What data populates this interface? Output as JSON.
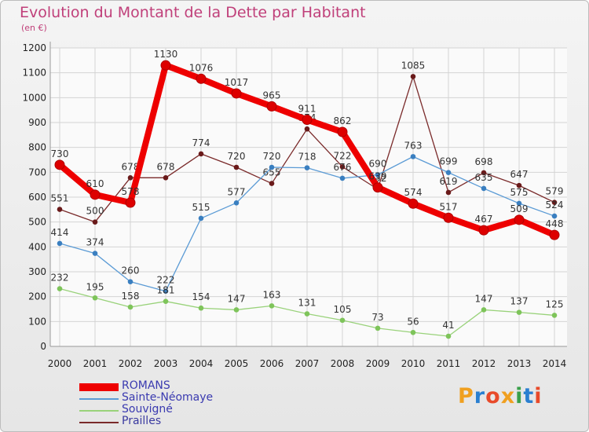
{
  "title": "Evolution du Montant de la Dette par Habitant",
  "subtitle": "(en €)",
  "logo": {
    "text": "Proxiti",
    "colors": [
      "#f0a020",
      "#2a7fd0",
      "#e84a2a",
      "#f0a020",
      "#3aa04a",
      "#2a7fd0",
      "#e84a2a"
    ]
  },
  "chart_data": {
    "type": "line",
    "x": [
      "2000",
      "2001",
      "2002",
      "2003",
      "2004",
      "2005",
      "2006",
      "2007",
      "2008",
      "2009",
      "2010",
      "2011",
      "2012",
      "2013",
      "2014"
    ],
    "yticks": [
      0,
      100,
      200,
      300,
      400,
      500,
      600,
      700,
      800,
      900,
      1000,
      1100,
      1200
    ],
    "ylim": [
      0,
      1200
    ],
    "grid": true,
    "legend_position": "bottom-left",
    "series": [
      {
        "name": "Prailles",
        "color": "#7a2a2a",
        "width": 1.3,
        "marker": "#6a1a1a",
        "values": [
          551,
          500,
          678,
          678,
          774,
          720,
          655,
          874,
          722,
          632,
          1085,
          619,
          698,
          647,
          579
        ]
      },
      {
        "name": "Sainte-Néomaye",
        "color": "#5b9bd5",
        "width": 1.3,
        "marker": "#3a7fc0",
        "values": [
          414,
          374,
          260,
          222,
          515,
          577,
          720,
          718,
          676,
          690,
          763,
          699,
          635,
          575,
          524
        ]
      },
      {
        "name": "Souvigné",
        "color": "#99d27a",
        "width": 1.3,
        "marker": "#7ec45a",
        "values": [
          232,
          195,
          158,
          181,
          154,
          147,
          163,
          131,
          105,
          73,
          56,
          41,
          147,
          137,
          125
        ]
      },
      {
        "name": "ROMANS",
        "color": "#ee0000",
        "width": 8,
        "marker": "#dd0000",
        "values": [
          730,
          610,
          578,
          1130,
          1076,
          1017,
          965,
          911,
          862,
          639,
          574,
          517,
          467,
          509,
          448
        ]
      }
    ],
    "legend_order": [
      "ROMANS",
      "Sainte-Néomaye",
      "Souvigné",
      "Prailles"
    ]
  }
}
